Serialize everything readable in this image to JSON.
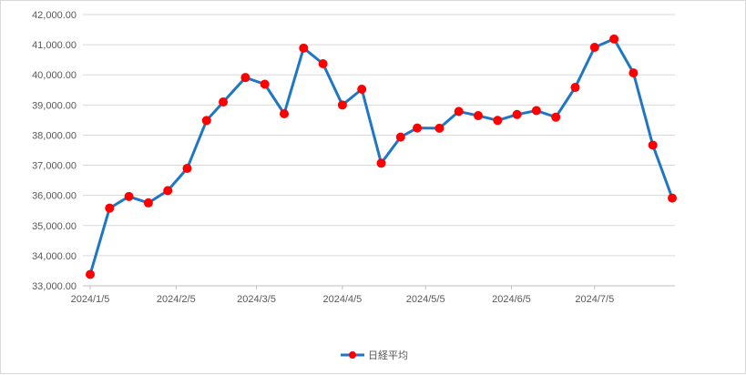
{
  "chart_data": {
    "type": "line",
    "title": "",
    "xlabel": "",
    "ylabel": "",
    "ylim": [
      33000,
      42000
    ],
    "y_ticks": [
      "33,000.00",
      "34,000.00",
      "35,000.00",
      "36,000.00",
      "37,000.00",
      "38,000.00",
      "39,000.00",
      "40,000.00",
      "41,000.00",
      "42,000.00"
    ],
    "x_tick_labels": [
      "2024/1/5",
      "2024/2/5",
      "2024/3/5",
      "2024/4/5",
      "2024/5/5",
      "2024/6/5",
      "2024/7/5"
    ],
    "grid": "horizontal",
    "legend": "bottom",
    "colors": {
      "line": "#1f77c4",
      "marker": "#ff0000",
      "grid": "#d9d9d9",
      "axis": "#bfbfbf"
    },
    "series": [
      {
        "name": "日経平均",
        "x": [
          "2024/1/5",
          "2024/1/12",
          "2024/1/19",
          "2024/1/26",
          "2024/2/2",
          "2024/2/9",
          "2024/2/16",
          "2024/2/22",
          "2024/3/1",
          "2024/3/8",
          "2024/3/15",
          "2024/3/22",
          "2024/3/29",
          "2024/4/5",
          "2024/4/12",
          "2024/4/19",
          "2024/4/26",
          "2024/5/2",
          "2024/5/10",
          "2024/5/17",
          "2024/5/24",
          "2024/5/31",
          "2024/6/7",
          "2024/6/14",
          "2024/6/21",
          "2024/6/28",
          "2024/7/5",
          "2024/7/12",
          "2024/7/19",
          "2024/7/26",
          "2024/8/2"
        ],
        "values": [
          33377,
          35577,
          35963,
          35751,
          36158,
          36897,
          38487,
          39099,
          39911,
          39689,
          38708,
          40888,
          40369,
          39000,
          39524,
          37068,
          37934,
          38236,
          38229,
          38787,
          38646,
          38488,
          38684,
          38815,
          38596,
          39583,
          40912,
          41190,
          40064,
          37667,
          35910
        ]
      }
    ]
  }
}
